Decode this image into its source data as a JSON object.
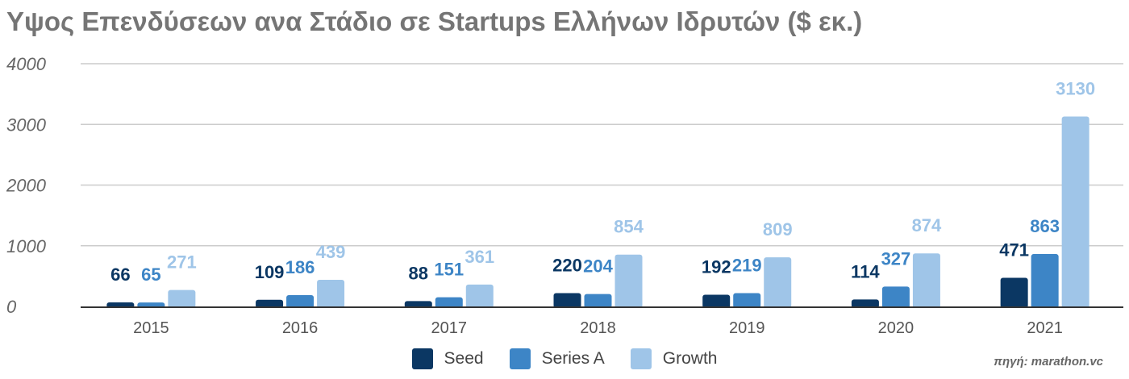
{
  "chart_data": {
    "type": "bar",
    "title": "Υψος Επενδύσεων ανα Στάδιο σε Startups Ελλήνων Ιδρυτών ($ εκ.)",
    "xlabel": "",
    "ylabel": "",
    "ylim": [
      0,
      4000
    ],
    "yticks": [
      0,
      1000,
      2000,
      3000,
      4000
    ],
    "grid": true,
    "legend_position": "bottom",
    "categories": [
      "2015",
      "2016",
      "2017",
      "2018",
      "2019",
      "2020",
      "2021"
    ],
    "series": [
      {
        "name": "Seed",
        "color": "#0b3763",
        "values": [
          66,
          109,
          88,
          220,
          192,
          114,
          471
        ]
      },
      {
        "name": "Series A",
        "color": "#3d85c6",
        "values": [
          65,
          186,
          151,
          204,
          219,
          327,
          863
        ]
      },
      {
        "name": "Growth",
        "color": "#9fc5e8",
        "values": [
          271,
          439,
          361,
          854,
          809,
          874,
          3130
        ]
      }
    ],
    "source": "πηγή: marathon.vc"
  }
}
